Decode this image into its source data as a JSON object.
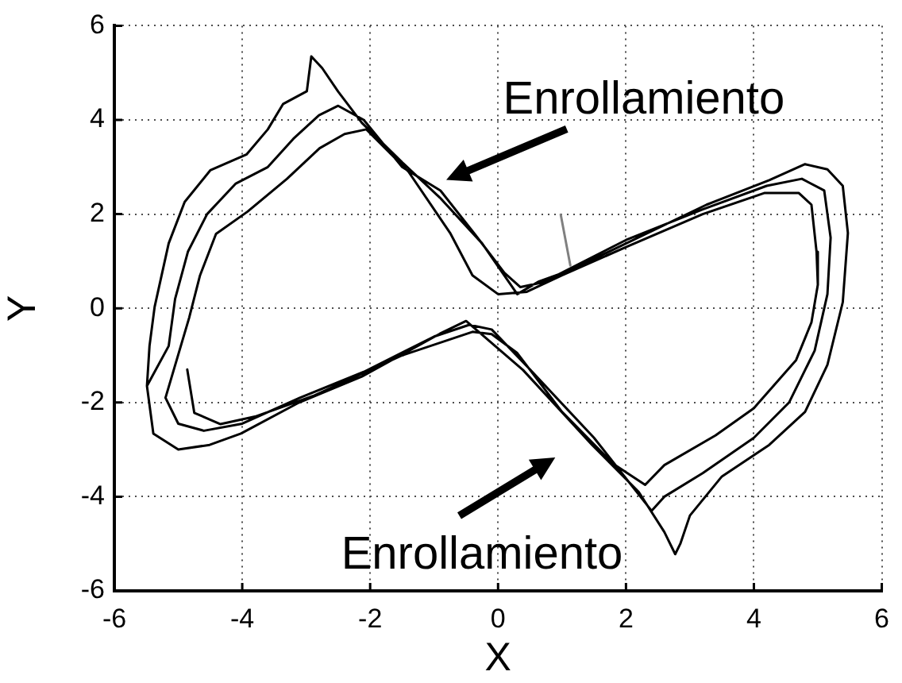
{
  "chart_data": {
    "type": "line",
    "xlabel": "X",
    "ylabel": "Y",
    "xlim": [
      -6,
      6
    ],
    "xticks": [
      -6,
      -4,
      -2,
      0,
      2,
      4,
      6
    ],
    "ylim": [
      -6,
      6
    ],
    "yticks": [
      -6,
      -4,
      -2,
      0,
      2,
      4,
      6
    ],
    "grid": true,
    "series": [
      {
        "color": "#000000",
        "x": [
          -5.49,
          -5.45,
          -5.37,
          -5.15,
          -4.9,
          -4.5,
          -3.93,
          -3.6,
          -3.36,
          -2.99,
          -2.92,
          -2.75,
          -2.5,
          -2.13,
          -1.5,
          -0.91,
          -0.25,
          0.3,
          0.64,
          1.13,
          1.96,
          3.26,
          4.24,
          4.8,
          5.15,
          5.39,
          5.47,
          5.39,
          5.15,
          4.8,
          4.24,
          3.5,
          3.0,
          2.85,
          2.77,
          2.6,
          2.2,
          1.47,
          0.39,
          -0.5,
          -0.91,
          -2.13,
          -3.11,
          -4.02,
          -4.51,
          -5.0,
          -5.39,
          -5.49,
          -5.15,
          -5.05,
          -4.85,
          -4.55,
          -4.1,
          -3.6,
          -3.2,
          -2.8,
          -2.5,
          -2.1,
          -1.5,
          -0.9,
          -0.35,
          0.1,
          0.35,
          0.7,
          2.0,
          3.2,
          4.2,
          4.75,
          5.1,
          5.2,
          5.15,
          4.95,
          4.55,
          4.0,
          3.2,
          2.6,
          2.4,
          1.5,
          0.5,
          -0.1,
          -0.45,
          -1.0,
          -2.1,
          -3.1,
          -4.0,
          -4.6,
          -5.0,
          -5.2,
          -4.83,
          -4.66,
          -4.41,
          -3.92,
          -3.3,
          -2.79,
          -2.4,
          -2.06,
          -1.4,
          -0.75,
          -0.4,
          0.0,
          0.45,
          1.0,
          2.0,
          3.2,
          4.17,
          4.7,
          4.9,
          4.98,
          5.0,
          4.9,
          4.66,
          4.0,
          3.4,
          2.6,
          2.3,
          1.8,
          1.0,
          0.3,
          -0.1,
          -0.4,
          -1.5,
          -2.87,
          -3.8,
          -4.34,
          -4.75,
          -4.86
        ],
        "values": [
          -1.65,
          -0.8,
          0.03,
          1.38,
          2.26,
          2.93,
          3.27,
          3.8,
          4.34,
          4.61,
          5.35,
          5.1,
          4.6,
          3.94,
          3.1,
          2.35,
          1.38,
          0.3,
          0.57,
          0.81,
          1.35,
          2.2,
          2.72,
          3.06,
          2.95,
          2.6,
          1.6,
          0.13,
          -1.2,
          -2.2,
          -2.9,
          -3.57,
          -4.4,
          -5.0,
          -5.22,
          -4.75,
          -3.9,
          -2.9,
          -1.31,
          -0.27,
          -0.54,
          -1.45,
          -2.0,
          -2.66,
          -2.9,
          -3.0,
          -2.66,
          -1.65,
          -0.8,
          0.2,
          1.2,
          2.0,
          2.65,
          3.0,
          3.6,
          4.1,
          4.3,
          4.0,
          3.0,
          2.5,
          1.55,
          0.75,
          0.45,
          0.55,
          1.45,
          2.1,
          2.6,
          2.75,
          2.5,
          1.5,
          0.3,
          -0.9,
          -2.0,
          -2.75,
          -3.5,
          -4.0,
          -4.3,
          -2.75,
          -1.3,
          -0.45,
          -0.35,
          -0.6,
          -1.35,
          -1.9,
          -2.45,
          -2.6,
          -2.45,
          -1.9,
          -0.2,
          0.7,
          1.58,
          2.05,
          2.75,
          3.4,
          3.7,
          3.8,
          2.9,
          1.6,
          0.7,
          0.3,
          0.35,
          0.7,
          1.3,
          2.0,
          2.45,
          2.45,
          2.2,
          1.2,
          0.5,
          -0.3,
          -1.1,
          -2.12,
          -2.7,
          -3.33,
          -3.75,
          -3.3,
          -2.2,
          -0.95,
          -0.55,
          -0.5,
          -1.0,
          -1.85,
          -2.3,
          -2.46,
          -2.22,
          -1.3
        ]
      },
      {
        "color": "#808080",
        "x": [
          0.98,
          1.13
        ],
        "values": [
          1.99,
          0.91
        ]
      }
    ],
    "annotations": [
      "Enrollamiento",
      "Enrollamiento"
    ]
  }
}
